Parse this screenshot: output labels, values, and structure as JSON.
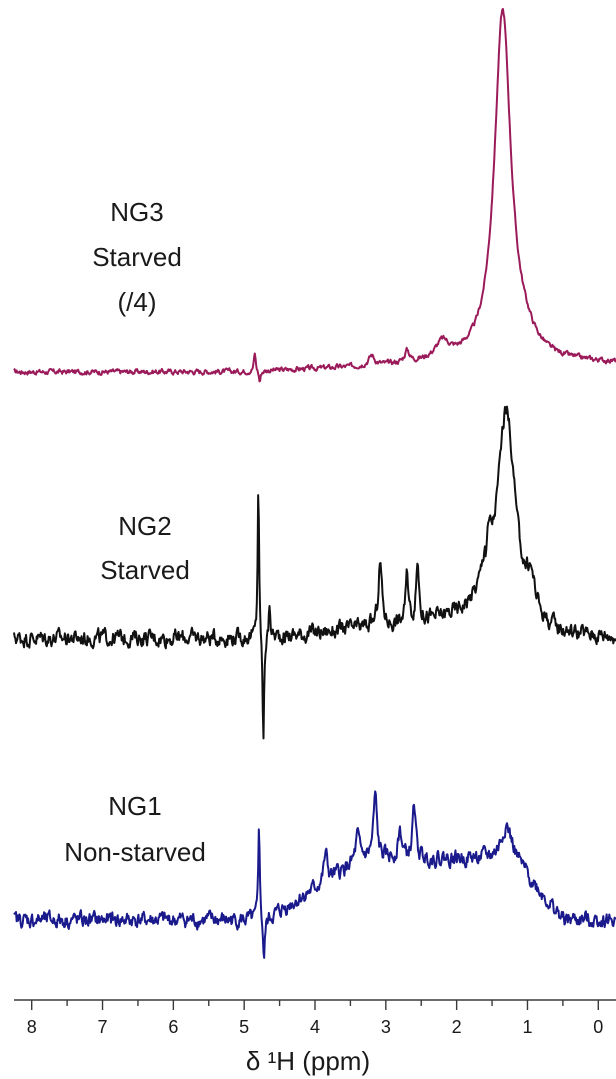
{
  "chart_data": {
    "type": "line",
    "title": "",
    "xlabel": "δ ¹H (ppm)",
    "ylabel": "",
    "x_reversed": true,
    "xlim": [
      8.25,
      -0.25
    ],
    "x_ticks": [
      "8",
      "7",
      "6",
      "5",
      "4",
      "3",
      "2",
      "1",
      "0"
    ],
    "grid": false,
    "legend": "none",
    "series": [
      {
        "name": "NG3 Starved (/4)",
        "label_lines": [
          "NG3",
          "Starved",
          "(/4)"
        ],
        "color": "#9b1b5a",
        "note": "relative intensity, stacked offset",
        "peaks": [
          {
            "x": 4.85,
            "h": 0.55,
            "w": 0.015
          },
          {
            "x": 4.78,
            "h": -0.35,
            "w": 0.015
          },
          {
            "x": 3.2,
            "h": 0.3,
            "w": 0.05
          },
          {
            "x": 2.7,
            "h": 0.35,
            "w": 0.04
          },
          {
            "x": 2.2,
            "h": 0.5,
            "w": 0.12
          },
          {
            "x": 1.35,
            "h": 10.6,
            "w": 0.14
          },
          {
            "x": 1.05,
            "h": 0.4,
            "w": 0.2
          }
        ]
      },
      {
        "name": "NG2 Starved",
        "label_lines": [
          "NG2",
          "Starved"
        ],
        "color": "#111111",
        "note": "relative intensity, stacked offset",
        "peaks": [
          {
            "x": 4.8,
            "h": 4.9,
            "w": 0.012
          },
          {
            "x": 4.73,
            "h": -3.5,
            "w": 0.012
          },
          {
            "x": 4.64,
            "h": 1.0,
            "w": 0.015
          },
          {
            "x": 3.08,
            "h": 2.0,
            "w": 0.03
          },
          {
            "x": 2.7,
            "h": 1.4,
            "w": 0.025
          },
          {
            "x": 2.55,
            "h": 1.8,
            "w": 0.025
          },
          {
            "x": 1.3,
            "h": 7.0,
            "w": 0.16
          },
          {
            "x": 1.55,
            "h": 1.5,
            "w": 0.06
          },
          {
            "x": 0.95,
            "h": 1.0,
            "w": 0.08
          }
        ]
      },
      {
        "name": "NG1 Non-starved",
        "label_lines": [
          "NG1",
          "Non-starved"
        ],
        "color": "#1a1a8c",
        "note": "relative intensity, stacked offset",
        "peaks": [
          {
            "x": 4.79,
            "h": 3.6,
            "w": 0.012
          },
          {
            "x": 4.72,
            "h": -1.5,
            "w": 0.015
          },
          {
            "x": 3.85,
            "h": 1.0,
            "w": 0.03
          },
          {
            "x": 3.15,
            "h": 2.2,
            "w": 0.03
          },
          {
            "x": 2.6,
            "h": 2.0,
            "w": 0.025
          },
          {
            "x": 2.8,
            "h": 1.0,
            "w": 0.03
          },
          {
            "x": 3.4,
            "h": 0.9,
            "w": 0.03
          },
          {
            "x": 1.3,
            "h": 1.2,
            "w": 0.08
          }
        ]
      }
    ]
  }
}
